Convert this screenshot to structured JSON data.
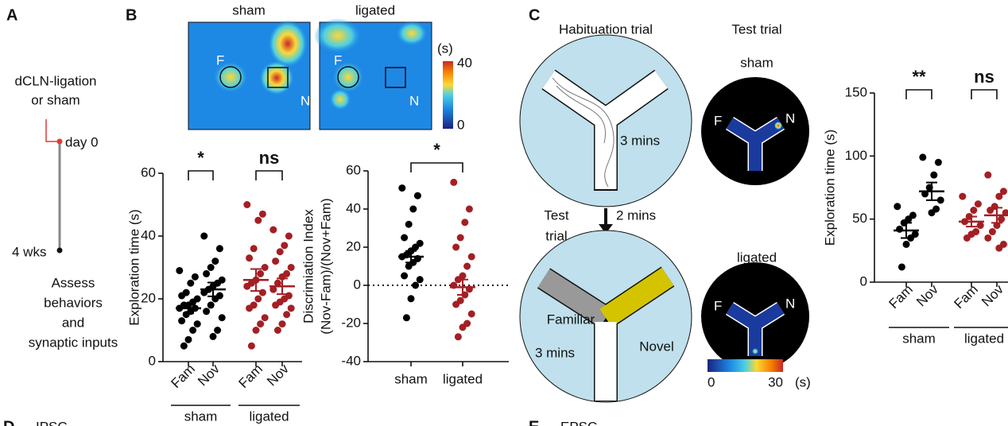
{
  "panel_letters": [
    "A",
    "B",
    "C"
  ],
  "timeline": {
    "top": [
      "dCLN-ligation",
      "or sham"
    ],
    "day0": "day 0",
    "week4": "4 wks",
    "outcome": [
      "Assess",
      "behaviors",
      "and",
      "synaptic inputs"
    ]
  },
  "heatmaps": {
    "titles": [
      "sham",
      "ligated"
    ],
    "familiar": "F",
    "novel": "N",
    "colorbar": {
      "label": "(s)",
      "ticks": [
        0,
        40
      ]
    }
  },
  "maze": {
    "habituation_title": "Habituation trial",
    "habituation_time": "3 mins",
    "interval_label": [
      "Test",
      "trial"
    ],
    "interval_time": "2 mins",
    "familiar": "Familiar",
    "novel": "Novel",
    "test_time": "3 mins",
    "test_title": "Test trial",
    "groups": [
      "sham",
      "ligated"
    ],
    "familiar_short": "F",
    "novel_short": "N",
    "colorbar": {
      "ticks": [
        0,
        30
      ],
      "unit": "(s)"
    }
  },
  "sections": [
    {
      "letter": "D",
      "title": "IPSC"
    },
    {
      "letter": "E",
      "title": "EPSC"
    }
  ],
  "chart_data": [
    {
      "type": "dot",
      "ylabel": [
        "Exploration time (s)"
      ],
      "categories": [
        "Fam",
        "Nov",
        "Fam",
        "Nov"
      ],
      "group_labels": [
        "sham",
        "ligated"
      ],
      "colors": [
        "#000000",
        "#000000",
        "#a31f24",
        "#a31f24"
      ],
      "points": [
        [
          29,
          27,
          25,
          22,
          21,
          20,
          19,
          18,
          18,
          17,
          17,
          16,
          15,
          13,
          12,
          10,
          7,
          5
        ],
        [
          40,
          36,
          32,
          30,
          28,
          26,
          25,
          24,
          23,
          22,
          21,
          20,
          18,
          16,
          14,
          10,
          8
        ],
        [
          50,
          47,
          45,
          36,
          33,
          30,
          28,
          26,
          25,
          24,
          22,
          20,
          18,
          17,
          14,
          12,
          10,
          5
        ],
        [
          42,
          40,
          37,
          35,
          32,
          30,
          28,
          27,
          25,
          23,
          21,
          20,
          19,
          18,
          17,
          15,
          12,
          10
        ]
      ],
      "means": [
        17,
        23,
        26,
        24
      ],
      "sems": [
        1.6,
        2.2,
        3.5,
        2.5
      ],
      "annotations": [
        "*",
        "ns"
      ],
      "ylim": [
        0,
        60
      ],
      "yticks": [
        0,
        20,
        40,
        60
      ]
    },
    {
      "type": "dot",
      "ylabel": [
        "Discrimiation Index",
        "(Nov-Fam)/(Nov+Fam)"
      ],
      "categories": [
        "sham",
        "ligated"
      ],
      "colors": [
        "#000000",
        "#a31f24"
      ],
      "points": [
        [
          51,
          47,
          40,
          32,
          25,
          22,
          20,
          18,
          16,
          15,
          14,
          12,
          10,
          5,
          3,
          0,
          -7,
          -17
        ],
        [
          54,
          40,
          33,
          25,
          20,
          15,
          10,
          5,
          3,
          0,
          -2,
          -5,
          -8,
          -10,
          -15,
          -20,
          -22,
          -27
        ]
      ],
      "means": [
        15,
        -1
      ],
      "sems": [
        3,
        4
      ],
      "annotations": [
        "*"
      ],
      "hline": 0,
      "ylim": [
        -40,
        60
      ],
      "yticks": [
        -40,
        -20,
        0,
        20,
        40,
        60
      ]
    },
    {
      "type": "dot",
      "ylabel": [
        "Exploration time (s)"
      ],
      "categories": [
        "Fam",
        "Nov",
        "Fam",
        "Nov"
      ],
      "group_labels": [
        "sham",
        "ligated"
      ],
      "colors": [
        "#000000",
        "#000000",
        "#a31f24",
        "#a31f24"
      ],
      "points": [
        [
          60,
          53,
          50,
          47,
          42,
          38,
          35,
          30,
          12
        ],
        [
          99,
          95,
          85,
          75,
          70,
          65,
          58,
          55
        ],
        [
          68,
          62,
          57,
          52,
          48,
          45,
          40,
          38,
          35
        ],
        [
          85,
          72,
          68,
          60,
          57,
          55,
          50,
          45,
          40,
          35,
          30,
          27
        ]
      ],
      "means": [
        41,
        72,
        48,
        53
      ],
      "sems": [
        6,
        7,
        4,
        6
      ],
      "annotations": [
        "**",
        "ns"
      ],
      "ylim": [
        0,
        150
      ],
      "yticks": [
        0,
        50,
        100,
        150
      ]
    }
  ]
}
